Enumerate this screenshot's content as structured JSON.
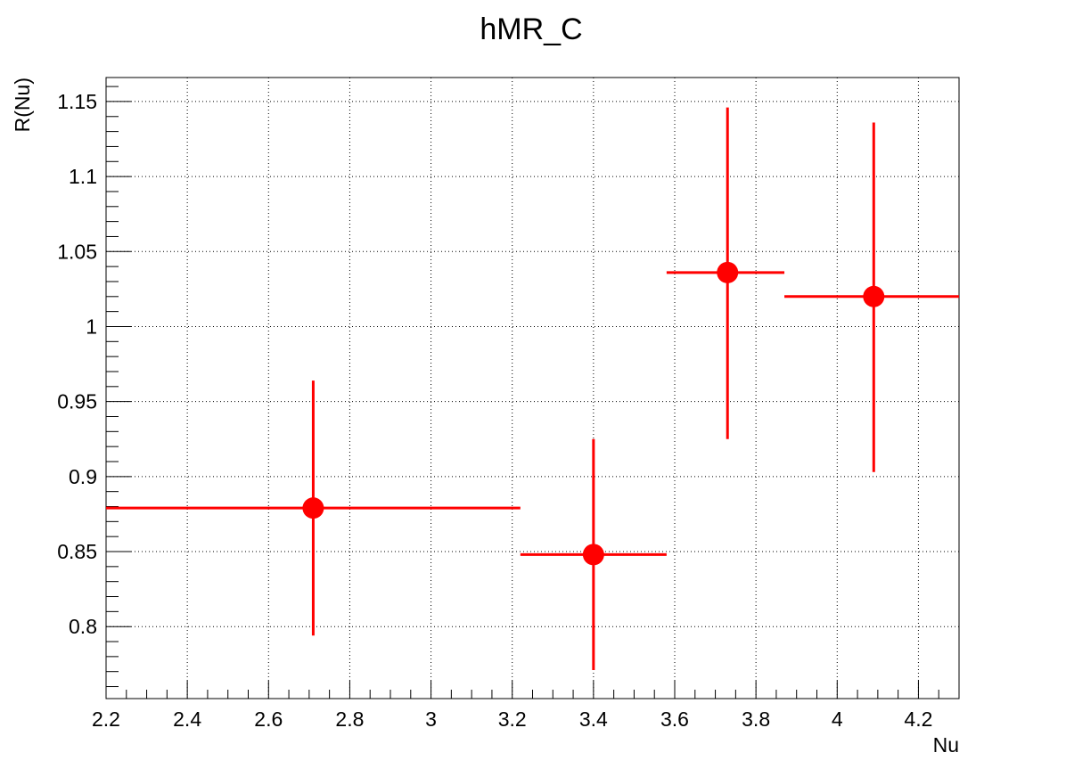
{
  "chart_data": {
    "type": "scatter",
    "title": "hMR_C",
    "xlabel": "Nu",
    "ylabel": "R(Nu)",
    "xlim": [
      2.2,
      4.3
    ],
    "ylim": [
      0.752,
      1.166
    ],
    "xticks": [
      2.2,
      2.4,
      2.6,
      2.8,
      3.0,
      3.2,
      3.4,
      3.6,
      3.8,
      4.0,
      4.2
    ],
    "xtick_labels": [
      "2.2",
      "2.4",
      "2.6",
      "2.8",
      "3",
      "3.2",
      "3.4",
      "3.6",
      "3.8",
      "4",
      "4.2"
    ],
    "yticks": [
      0.8,
      0.85,
      0.9,
      0.95,
      1.0,
      1.05,
      1.1,
      1.15
    ],
    "ytick_labels": [
      "0.8",
      "0.85",
      "0.9",
      "0.95",
      "1",
      "1.05",
      "1.1",
      "1.15"
    ],
    "grid": true,
    "series": [
      {
        "color": "#ff0000",
        "points": [
          {
            "x": 2.71,
            "y": 0.879,
            "xlow": 2.2,
            "xhigh": 3.22,
            "ylow": 0.794,
            "yhigh": 0.964
          },
          {
            "x": 3.4,
            "y": 0.848,
            "xlow": 3.22,
            "xhigh": 3.58,
            "ylow": 0.771,
            "yhigh": 0.925
          },
          {
            "x": 3.73,
            "y": 1.036,
            "xlow": 3.58,
            "xhigh": 3.87,
            "ylow": 0.925,
            "yhigh": 1.146
          },
          {
            "x": 4.09,
            "y": 1.02,
            "xlow": 3.87,
            "xhigh": 4.3,
            "ylow": 0.903,
            "yhigh": 1.136
          }
        ]
      }
    ]
  }
}
